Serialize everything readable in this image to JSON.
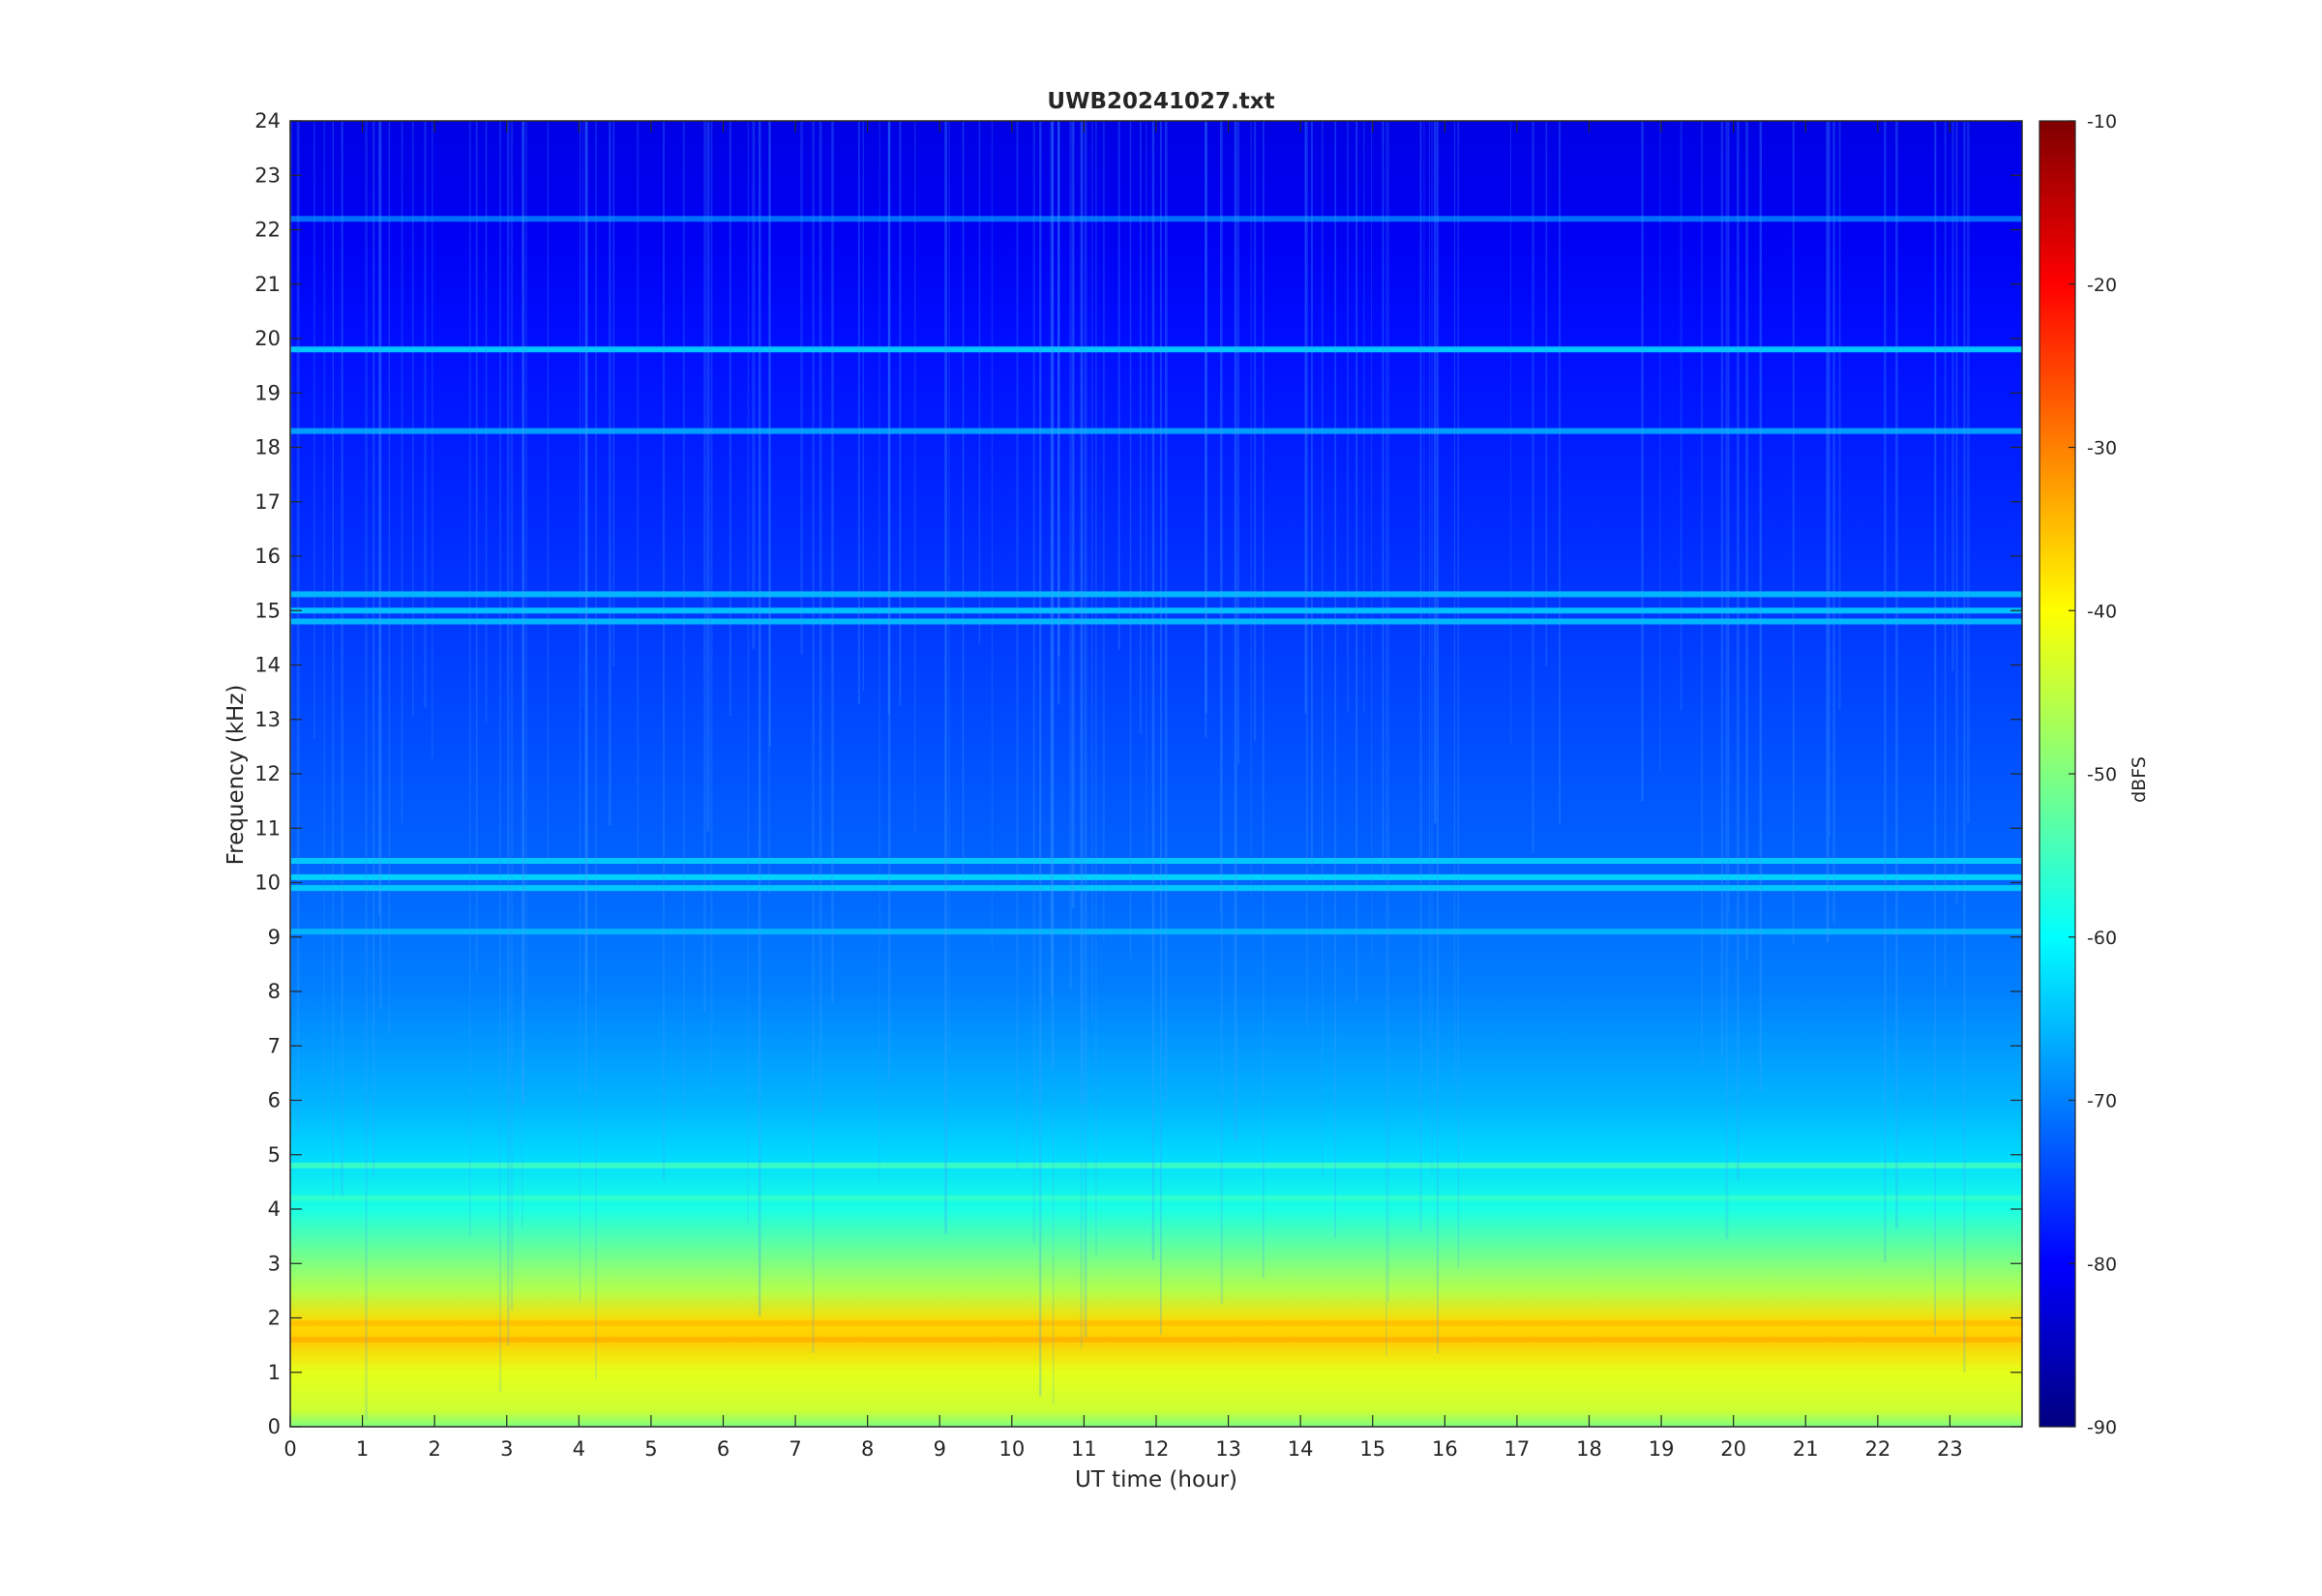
{
  "chart_data": {
    "type": "heatmap",
    "title": "UWB20241027.txt",
    "xlabel": "UT time (hour)",
    "ylabel": "Frequency (kHz)",
    "xlim": [
      0,
      24
    ],
    "ylim": [
      0,
      24
    ],
    "x_ticks": [
      0,
      1,
      2,
      3,
      4,
      5,
      6,
      7,
      8,
      9,
      10,
      11,
      12,
      13,
      14,
      15,
      16,
      17,
      18,
      19,
      20,
      21,
      22,
      23
    ],
    "y_ticks": [
      0,
      1,
      2,
      3,
      4,
      5,
      6,
      7,
      8,
      9,
      10,
      11,
      12,
      13,
      14,
      15,
      16,
      17,
      18,
      19,
      20,
      21,
      22,
      23,
      24
    ],
    "grid": false,
    "colormap": "jet",
    "colorbar": {
      "label": "dBFS",
      "range": [
        -90,
        -10
      ],
      "ticks": [
        -10,
        -20,
        -30,
        -40,
        -50,
        -60,
        -70,
        -80,
        -90
      ]
    },
    "intensity_profile_by_frequency": [
      {
        "freq_khz": 0.0,
        "dbfs": -50
      },
      {
        "freq_khz": 0.3,
        "dbfs": -44
      },
      {
        "freq_khz": 1.0,
        "dbfs": -42
      },
      {
        "freq_khz": 1.6,
        "dbfs": -36
      },
      {
        "freq_khz": 1.9,
        "dbfs": -37
      },
      {
        "freq_khz": 2.5,
        "dbfs": -46
      },
      {
        "freq_khz": 3.0,
        "dbfs": -50
      },
      {
        "freq_khz": 4.0,
        "dbfs": -58
      },
      {
        "freq_khz": 5.0,
        "dbfs": -63
      },
      {
        "freq_khz": 6.0,
        "dbfs": -66
      },
      {
        "freq_khz": 8.0,
        "dbfs": -70
      },
      {
        "freq_khz": 10.0,
        "dbfs": -72
      },
      {
        "freq_khz": 14.0,
        "dbfs": -75
      },
      {
        "freq_khz": 17.0,
        "dbfs": -77
      },
      {
        "freq_khz": 20.0,
        "dbfs": -79
      },
      {
        "freq_khz": 22.0,
        "dbfs": -81
      },
      {
        "freq_khz": 24.0,
        "dbfs": -82
      }
    ],
    "horizontal_lines": [
      {
        "freq_khz": 19.8,
        "dbfs": -62
      },
      {
        "freq_khz": 18.3,
        "dbfs": -66
      },
      {
        "freq_khz": 22.2,
        "dbfs": -70
      },
      {
        "freq_khz": 15.3,
        "dbfs": -64
      },
      {
        "freq_khz": 15.0,
        "dbfs": -63
      },
      {
        "freq_khz": 14.8,
        "dbfs": -64
      },
      {
        "freq_khz": 10.4,
        "dbfs": -63
      },
      {
        "freq_khz": 10.1,
        "dbfs": -62
      },
      {
        "freq_khz": 9.9,
        "dbfs": -63
      },
      {
        "freq_khz": 9.1,
        "dbfs": -65
      },
      {
        "freq_khz": 4.8,
        "dbfs": -55
      },
      {
        "freq_khz": 4.2,
        "dbfs": -56
      },
      {
        "freq_khz": 1.6,
        "dbfs": -34
      },
      {
        "freq_khz": 1.9,
        "dbfs": -35
      }
    ]
  }
}
